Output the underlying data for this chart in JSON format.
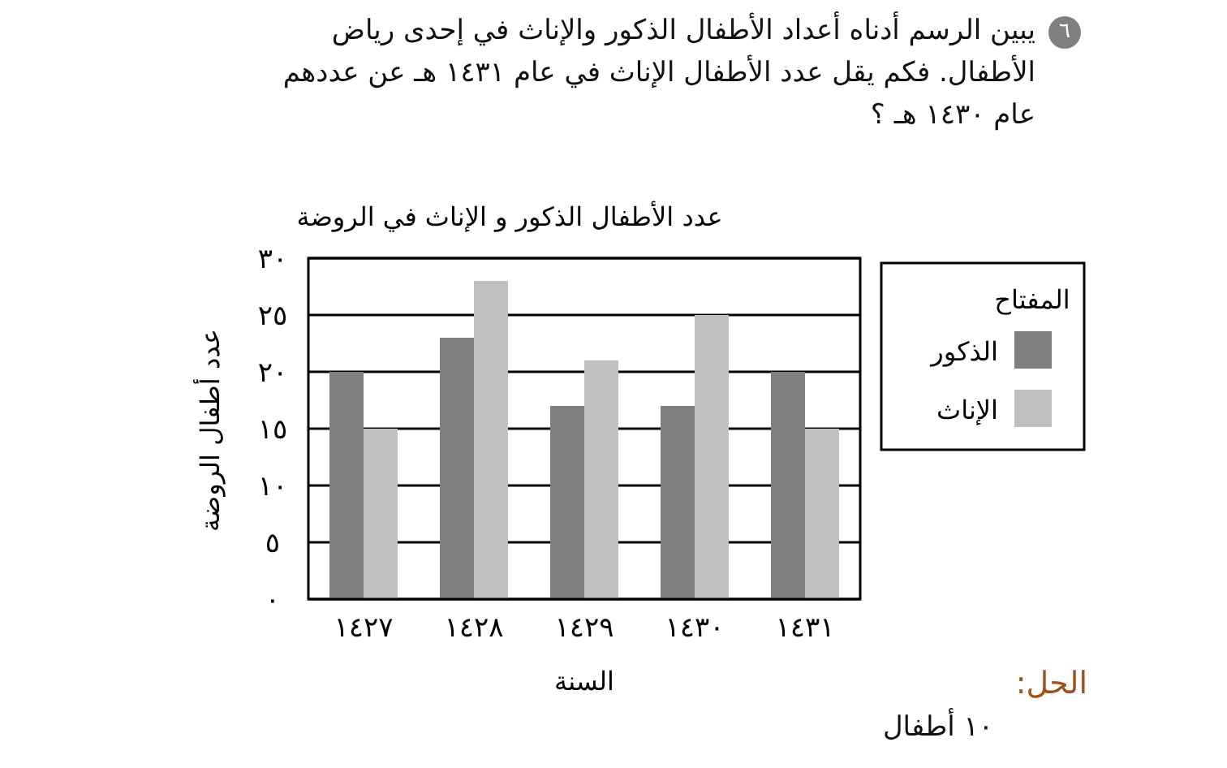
{
  "chart_data": {
    "type": "bar",
    "title": "عدد الأطفال الذكور و الإناث في الروضة",
    "xlabel": "السنة",
    "ylabel": "عدد أطفال الروضة",
    "legend_title": "المفتاح",
    "categories": [
      "١٤٢٧",
      "١٤٢٨",
      "١٤٢٩",
      "١٤٣٠",
      "١٤٣١"
    ],
    "series": [
      {
        "name": "الذكور",
        "color": "#7f7f7f",
        "values": [
          20,
          23,
          17,
          17,
          20
        ]
      },
      {
        "name": "الإناث",
        "color": "#bfbfbf",
        "values": [
          15,
          28,
          21,
          25,
          15
        ]
      }
    ],
    "ylim": [
      0,
      30
    ],
    "yticks": [
      {
        "value": 0,
        "label": "٠"
      },
      {
        "value": 5,
        "label": "٥"
      },
      {
        "value": 10,
        "label": "١٠"
      },
      {
        "value": 15,
        "label": "١٥"
      },
      {
        "value": 20,
        "label": "٢٠"
      },
      {
        "value": 25,
        "label": "٢٥"
      },
      {
        "value": 30,
        "label": "٣٠"
      }
    ],
    "grid": "y",
    "legend": "right",
    "annotations": [
      "٦",
      "يبين الرسم أدناه أعداد الأطفال الذكور والإناث في إحدى رياض الأطفال. فكم يقل عدد الأطفال الإناث في عام ١٤٣١ هـ عن عددهم عام ١٤٣٠ هـ ؟",
      "الحل:",
      "١٠ أطفال"
    ]
  }
}
